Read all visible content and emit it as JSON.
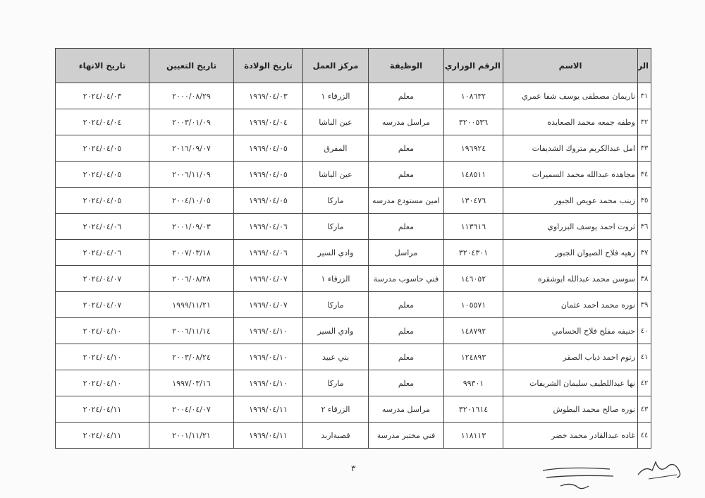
{
  "table": {
    "headers": [
      "الرقم",
      "الاسم",
      "الرقم الوزاري",
      "الوظيفة",
      "مركز العمل",
      "تاريخ الولادة",
      "تاريخ التعيين",
      "تاريخ الانهاء"
    ],
    "rows": [
      [
        "٣١",
        "ناريمان مصطفى يوسف شفا عمري",
        "١٠٨٦٣٢",
        "معلم",
        "الزرقاء ١",
        "١٩٦٩/٠٤/٠٣",
        "٢٠٠٠/٠٨/٢٩",
        "٢٠٢٤/٠٤/٠٣"
      ],
      [
        "٣٢",
        "وطفه جمعه محمد الصعايده",
        "٣٢٠٠٥٣٦",
        "مراسل مدرسه",
        "عين الباشا",
        "١٩٦٩/٠٤/٠٤",
        "٢٠٠٣/٠١/٠٩",
        "٢٠٢٤/٠٤/٠٤"
      ],
      [
        "٣٣",
        "امل عبدالكريم متروك الشديفات",
        "١٩٦٩٢٤",
        "معلم",
        "المفرق",
        "١٩٦٩/٠٤/٠٥",
        "٢٠١٦/٠٩/٠٧",
        "٢٠٢٤/٠٤/٠٥"
      ],
      [
        "٣٤",
        "مجاهده عبدالله محمد السميرات",
        "١٤٨٥١١",
        "معلم",
        "عين الباشا",
        "١٩٦٩/٠٤/٠٥",
        "٢٠٠٦/١١/٠٩",
        "٢٠٢٤/٠٤/٠٥"
      ],
      [
        "٣٥",
        "زينب محمد عويص الجبور",
        "١٣٠٤٧٦",
        "امين مستودع مدرسه",
        "ماركا",
        "١٩٦٩/٠٤/٠٥",
        "٢٠٠٤/١٠/٠٥",
        "٢٠٢٤/٠٤/٠٥"
      ],
      [
        "٣٦",
        "ثروت احمد يوسف البزراوي",
        "١١٣٦١٦",
        "معلم",
        "ماركا",
        "١٩٦٩/٠٤/٠٦",
        "٢٠٠١/٠٩/٠٣",
        "٢٠٢٤/٠٤/٠٦"
      ],
      [
        "٣٧",
        "زهيه فلاح الصيوان الجبور",
        "٣٢٠٤٣٠١",
        "مراسل",
        "وادي السير",
        "١٩٦٩/٠٤/٠٦",
        "٢٠٠٧/٠٣/١٨",
        "٢٠٢٤/٠٤/٠٦"
      ],
      [
        "٣٨",
        "سوسن محمد عبدالله ابوشقره",
        "١٤٦٠٥٢",
        "فني حاسوب مدرسة",
        "الزرقاء ١",
        "١٩٦٩/٠٤/٠٧",
        "٢٠٠٦/٠٨/٢٨",
        "٢٠٢٤/٠٤/٠٧"
      ],
      [
        "٣٩",
        "نوره محمد احمد عثمان",
        "١٠٥٥٧١",
        "معلم",
        "ماركا",
        "١٩٦٩/٠٤/٠٧",
        "١٩٩٩/١١/٢١",
        "٢٠٢٤/٠٤/٠٧"
      ],
      [
        "٤٠",
        "حنيفه مفلح فلاح الحسامي",
        "١٤٨٧٩٢",
        "معلم",
        "وادي السير",
        "١٩٦٩/٠٤/١٠",
        "٢٠٠٦/١١/١٤",
        "٢٠٢٤/٠٤/١٠"
      ],
      [
        "٤١",
        "رتوم احمد ذياب الصقر",
        "١٢٤٨٩٣",
        "معلم",
        "بني عبيد",
        "١٩٦٩/٠٤/١٠",
        "٢٠٠٣/٠٨/٢٤",
        "٢٠٢٤/٠٤/١٠"
      ],
      [
        "٤٢",
        "نها عبداللطيف سليمان الشريفات",
        "٩٩٣٠١",
        "معلم",
        "ماركا",
        "١٩٦٩/٠٤/١٠",
        "١٩٩٧/٠٣/١٦",
        "٢٠٢٤/٠٤/١٠"
      ],
      [
        "٤٣",
        "نوره صالح محمد البطوش",
        "٣٢٠١٦١٤",
        "مراسل مدرسه",
        "الزرقاء ٢",
        "١٩٦٩/٠٤/١١",
        "٢٠٠٤/٠٤/٠٧",
        "٢٠٢٤/٠٤/١١"
      ],
      [
        "٤٤",
        "غاده عبدالقادر محمد خضر",
        "١١٨١١٣",
        "فني مختبر مدرسة",
        "قصبةاربد",
        "١٩٦٩/٠٤/١١",
        "٢٠٠١/١١/٢١",
        "٢٠٢٤/٠٤/١١"
      ]
    ]
  },
  "footer": {
    "page_number": "٣"
  },
  "colors": {
    "header_bg": "#cfcfcf",
    "border": "#444444"
  }
}
